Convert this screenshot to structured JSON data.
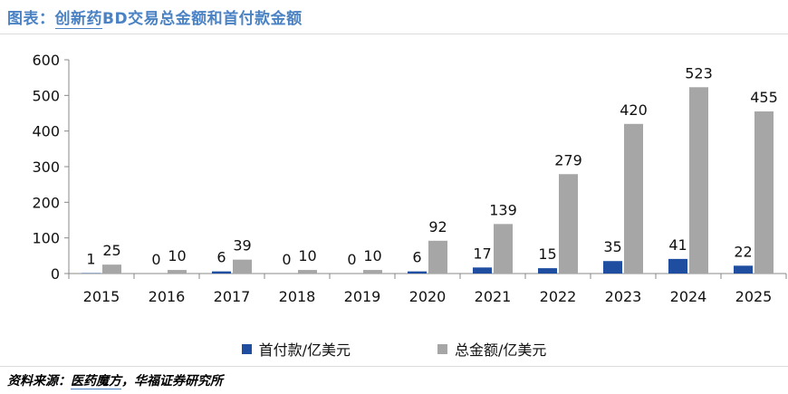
{
  "title_prefix": "图表：",
  "title_underlined": "创新药",
  "title_rest": "BD交易总金额和首付款金额",
  "source_prefix": "资料来源：",
  "source_underlined": "医药魔方",
  "source_rest": "，华福证券研究所",
  "colors": {
    "upfront": "#1f4ea0",
    "total": "#a6a6a6",
    "axis": "#888888"
  },
  "chart_data": {
    "type": "bar",
    "categories": [
      "2015",
      "2016",
      "2017",
      "2018",
      "2019",
      "2020",
      "2021",
      "2022",
      "2023",
      "2024",
      "2025"
    ],
    "series": [
      {
        "name": "首付款/亿美元",
        "values": [
          1,
          0,
          6,
          0,
          0,
          6,
          17,
          15,
          35,
          41,
          22
        ]
      },
      {
        "name": "总金额/亿美元",
        "values": [
          25,
          10,
          39,
          10,
          10,
          92,
          139,
          279,
          420,
          523,
          455
        ]
      }
    ],
    "yticks": [
      0,
      100,
      200,
      300,
      400,
      500,
      600
    ],
    "ylim": [
      0,
      600
    ],
    "grid": false,
    "legend_position": "bottom"
  }
}
